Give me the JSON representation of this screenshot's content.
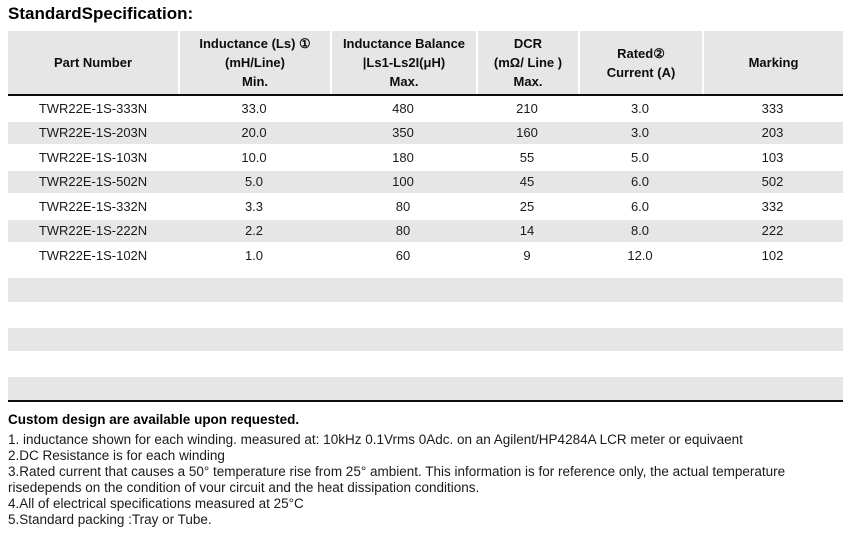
{
  "title": "StandardSpecification:",
  "table": {
    "columns": [
      {
        "id": "part-number",
        "lines": [
          "Part Number"
        ]
      },
      {
        "id": "inductance",
        "lines": [
          "Inductance (Ls) ①",
          "(mH/Line)",
          "Min."
        ]
      },
      {
        "id": "inductance-balance",
        "lines": [
          "Inductance Balance",
          "|Ls1-Ls2I(μH)",
          "Max."
        ]
      },
      {
        "id": "dcr",
        "lines": [
          "DCR",
          "(mΩ/ Line )",
          "Max."
        ]
      },
      {
        "id": "rated-current",
        "lines": [
          "Rated②",
          "Current   (A)"
        ]
      },
      {
        "id": "marking",
        "lines": [
          "Marking"
        ]
      }
    ],
    "rows": [
      [
        "TWR22E-1S-333N",
        "33.0",
        "480",
        "210",
        "3.0",
        "333"
      ],
      [
        "TWR22E-1S-203N",
        "20.0",
        "350",
        "160",
        "3.0",
        "203"
      ],
      [
        "TWR22E-1S-103N",
        "10.0",
        "180",
        "55",
        "5.0",
        "103"
      ],
      [
        "TWR22E-1S-502N",
        "5.0",
        "100",
        "45",
        "6.0",
        "502"
      ],
      [
        "TWR22E-1S-332N",
        "3.3",
        "80",
        "25",
        "6.0",
        "332"
      ],
      [
        "TWR22E-1S-222N",
        "2.2",
        "80",
        "14",
        "8.0",
        "222"
      ],
      [
        "TWR22E-1S-102N",
        "1.0",
        "60",
        "9",
        "12.0",
        "102"
      ]
    ]
  },
  "notes": {
    "heading": "Custom design are available upon requested.",
    "lines": [
      "1. inductance shown for each winding. measured at: 10kHz 0.1Vrms 0Adc. on an Agilent/HP4284A LCR meter or equivaent",
      "2.DC Resistance is for each winding",
      "3.Rated current that causes a 50° temperature rise from 25° ambient. This information is for reference only, the actual temperature",
      "risedepends on the condition of vour circuit and the heat dissipation conditions.",
      "4.All of electrical specifications measured at 25°C",
      "5.Standard packing :Tray or Tube."
    ]
  },
  "colors": {
    "header_bg": "#e7e6e6",
    "band_bg": "#e7e6e6",
    "border": "#0d0d0d",
    "page_bg": "#ffffff"
  }
}
